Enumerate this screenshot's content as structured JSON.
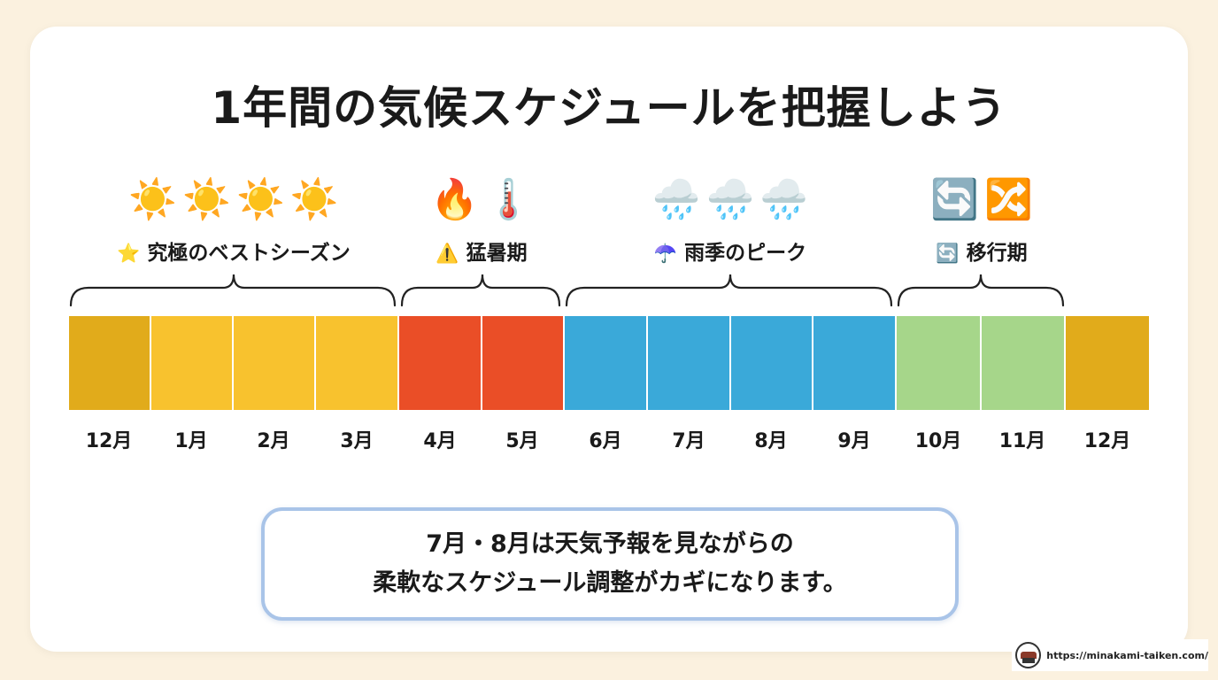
{
  "title": "1年間の気候スケジュールを把握しよう",
  "groups": [
    {
      "icons": [
        "☀️",
        "☀️",
        "☀️",
        "☀️"
      ],
      "label_icon": "⭐",
      "label": "究極のベストシーズン"
    },
    {
      "icons": [
        "🔥",
        "🌡️"
      ],
      "label_icon": "⚠️",
      "label": "猛暑期"
    },
    {
      "icons": [
        "🌧️",
        "🌧️",
        "🌧️"
      ],
      "label_icon": "☂️",
      "label": "雨季のピーク"
    },
    {
      "icons": [
        "🔄",
        "🔀"
      ],
      "label_icon": "🔄",
      "label": "移行期"
    }
  ],
  "months": [
    {
      "label": "12月",
      "color": "#e1ab1b"
    },
    {
      "label": "1月",
      "color": "#f8c22e"
    },
    {
      "label": "2月",
      "color": "#f8c22e"
    },
    {
      "label": "3月",
      "color": "#f8c22e"
    },
    {
      "label": "4月",
      "color": "#ea4e27"
    },
    {
      "label": "5月",
      "color": "#ea4e27"
    },
    {
      "label": "6月",
      "color": "#3aa9d9"
    },
    {
      "label": "7月",
      "color": "#3aa9d9"
    },
    {
      "label": "8月",
      "color": "#3aa9d9"
    },
    {
      "label": "9月",
      "color": "#3aa9d9"
    },
    {
      "label": "10月",
      "color": "#a6d68a"
    },
    {
      "label": "11月",
      "color": "#a6d68a"
    },
    {
      "label": "12月",
      "color": "#e1ab1b"
    }
  ],
  "note": {
    "line1": "7月・8月は天気予報を見ながらの",
    "line2": "柔軟なスケジュール調整がカギになります。"
  },
  "footer": {
    "url": "https://minakami-taiken.com/"
  }
}
